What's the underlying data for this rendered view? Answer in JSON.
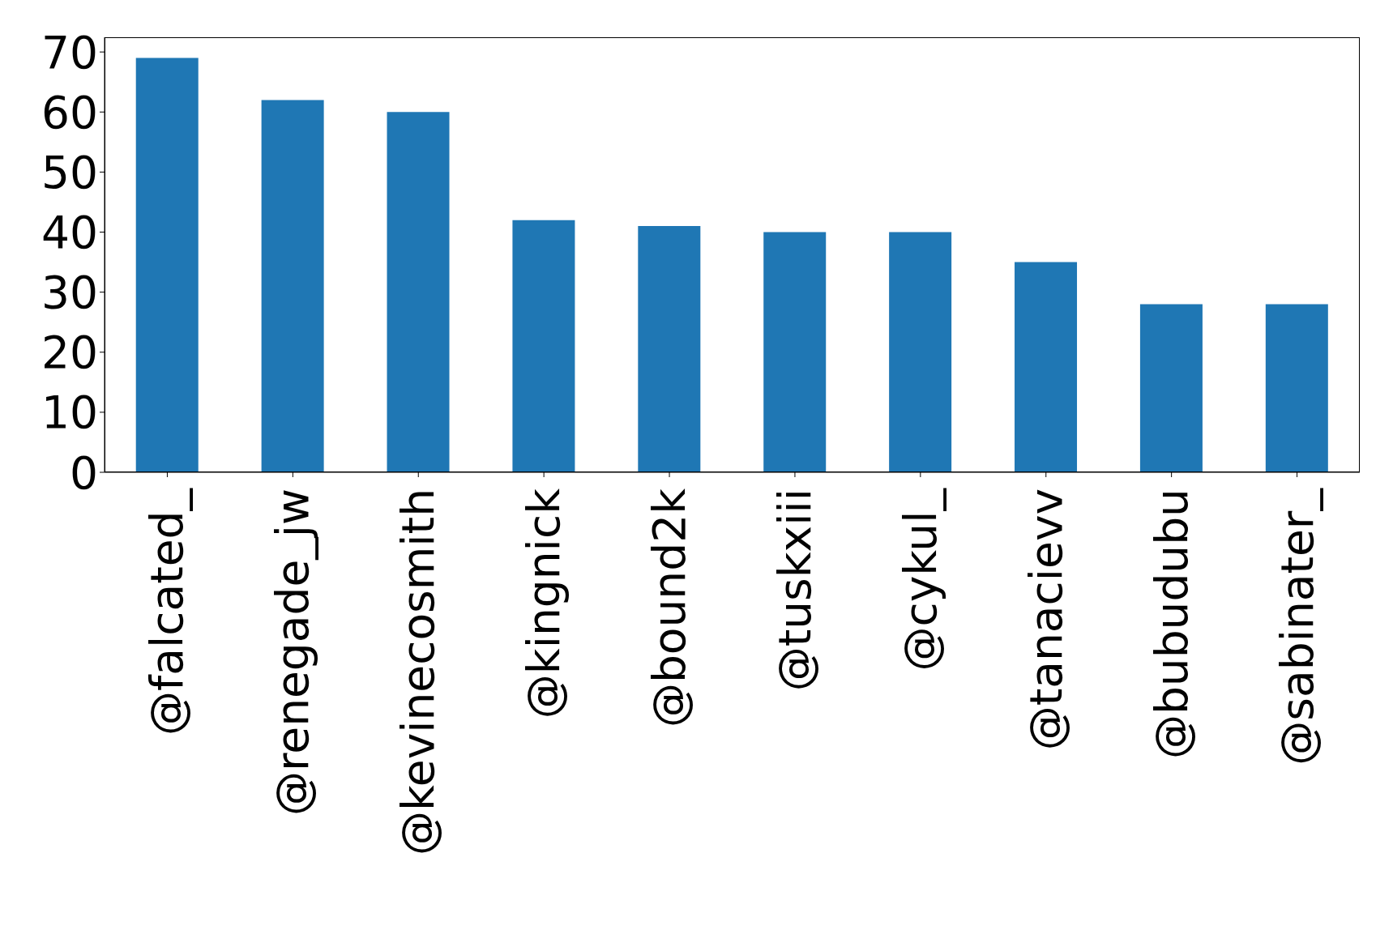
{
  "chart_data": {
    "type": "bar",
    "categories": [
      "@falcated_",
      "@renegade_jw",
      "@kevinecosmith",
      "@kingnick",
      "@bound2k",
      "@tuskxiii",
      "@cykul_",
      "@tanacievv",
      "@bubudubu",
      "@sabinater_"
    ],
    "values": [
      69,
      62,
      60,
      42,
      41,
      40,
      40,
      35,
      28,
      28
    ],
    "color": "#1f77b4",
    "ylim": [
      0,
      72.45
    ],
    "yticks": [
      0,
      10,
      20,
      30,
      40,
      50,
      60,
      70
    ],
    "grid": false
  }
}
